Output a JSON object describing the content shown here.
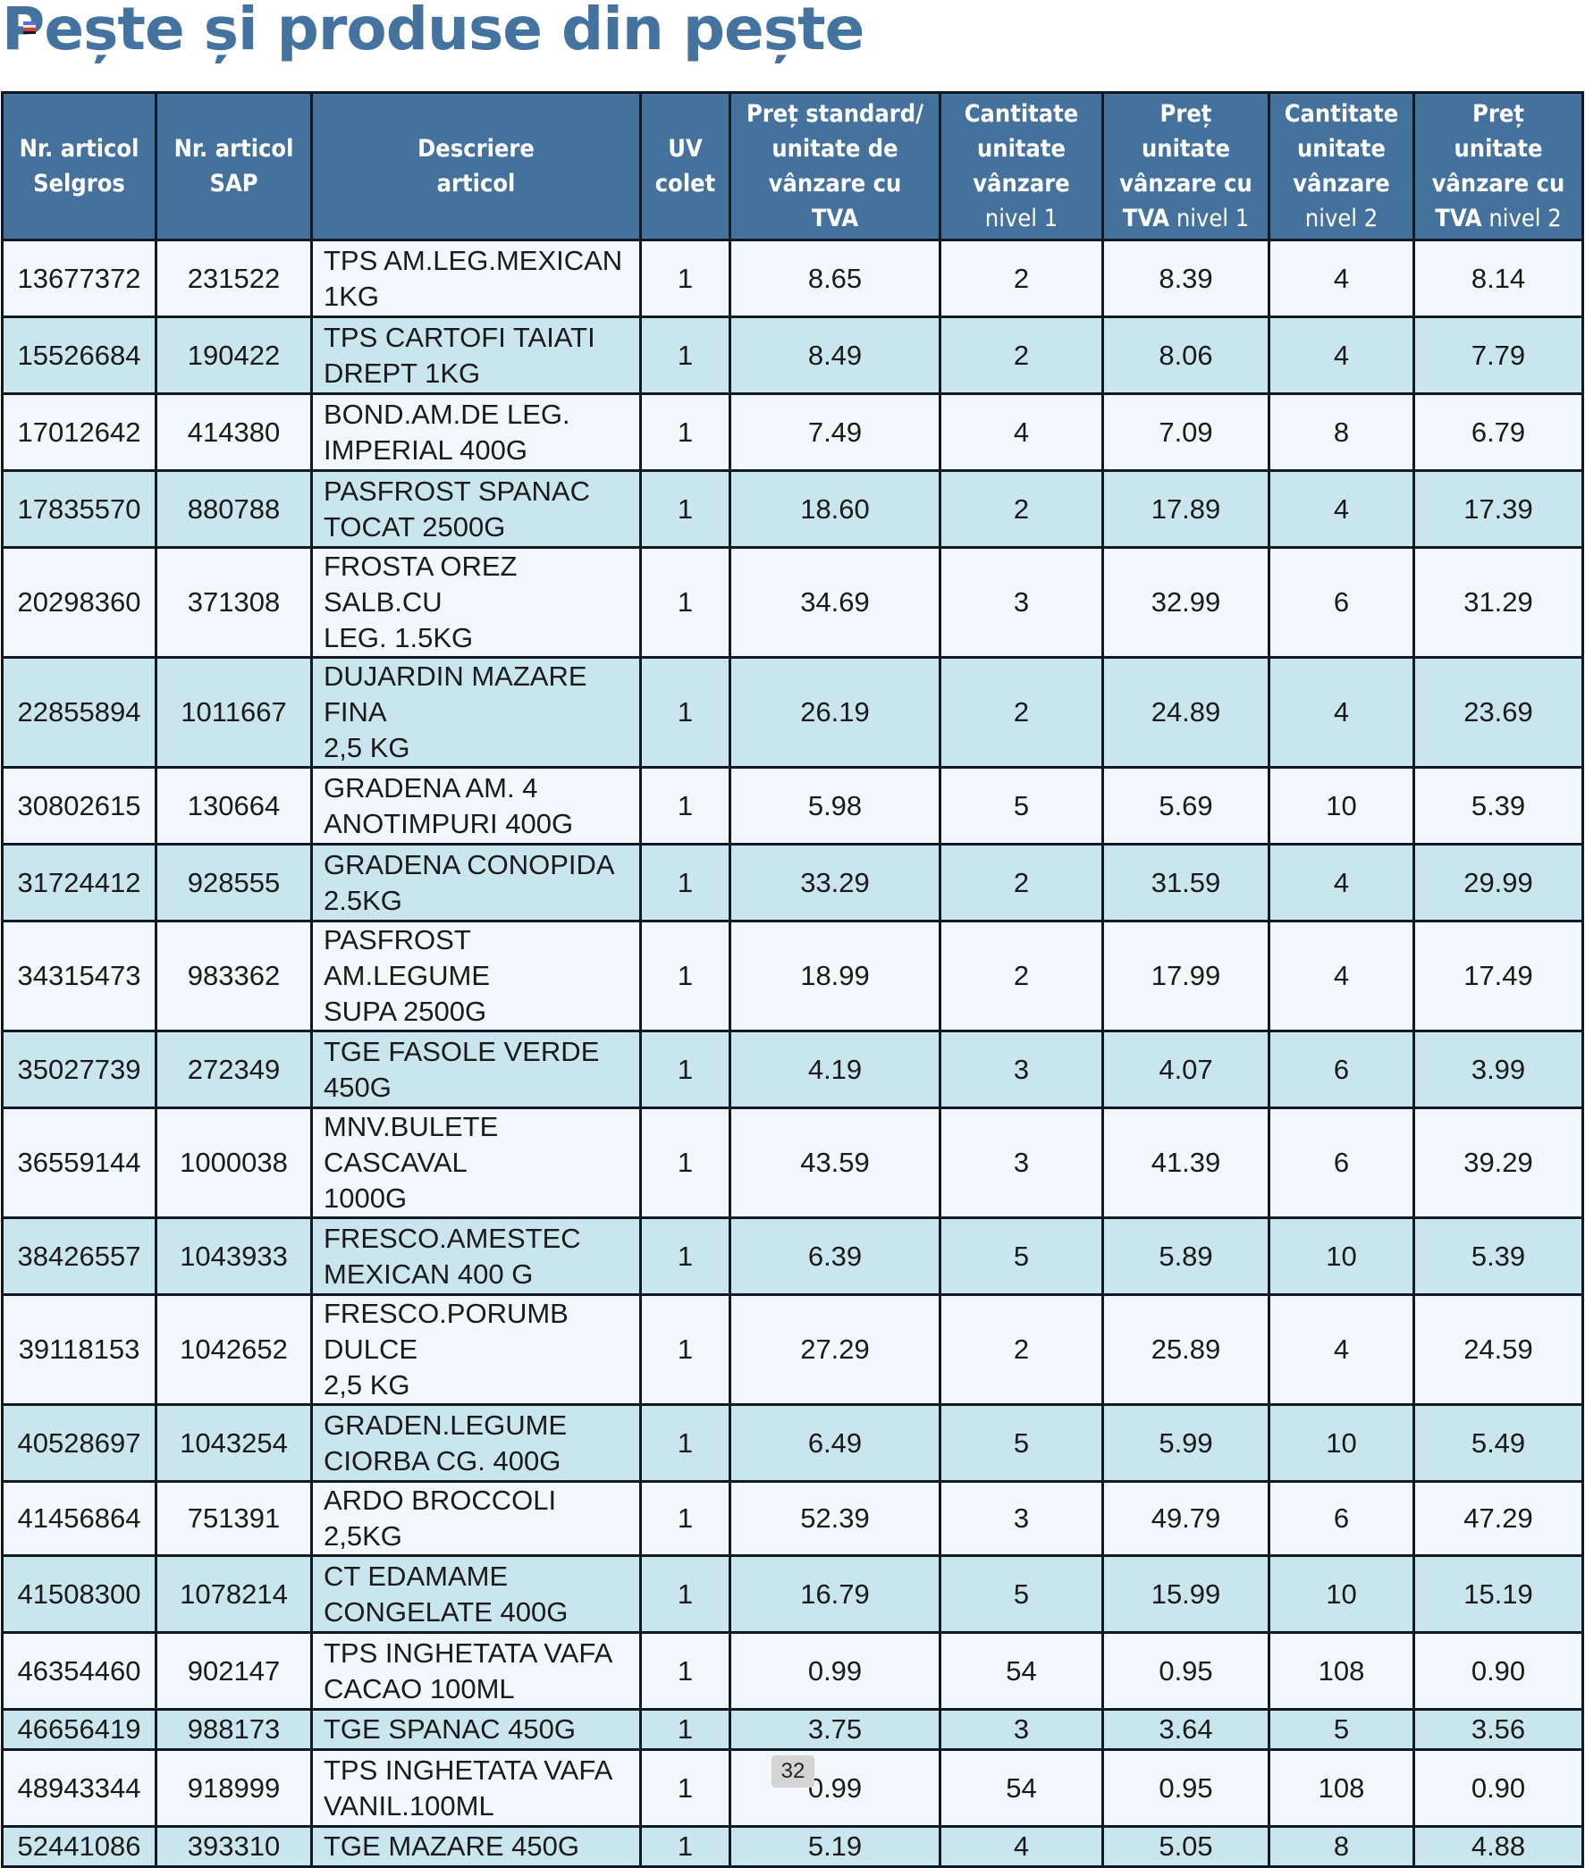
{
  "page": {
    "title": "Pește și produse din pește",
    "page_number": "32",
    "colors": {
      "title": "#4573a0",
      "header_bg": "#44729c",
      "row_light": "#f1f8fb",
      "row_shaded": "#c9e6ee",
      "border": "#111a24"
    }
  },
  "table": {
    "columns": [
      {
        "key": "selgros",
        "line1": "Nr. articol",
        "line2": "Selgros"
      },
      {
        "key": "sap",
        "line1": "Nr. articol",
        "line2": "SAP"
      },
      {
        "key": "description",
        "line1": "Descriere",
        "line2": "articol"
      },
      {
        "key": "uv",
        "line1": "UV",
        "line2": "colet"
      },
      {
        "key": "std_price",
        "line1": "Preț standard/",
        "line2": "unitate de",
        "line3": "vânzare cu",
        "line4": "TVA"
      },
      {
        "key": "qty1",
        "line1": "Cantitate",
        "line2": "unitate",
        "line3": "vânzare",
        "line4": "nivel 1"
      },
      {
        "key": "price1",
        "line1": "Preț",
        "line2": "unitate",
        "line3": "vânzare cu",
        "line4a": "TVA",
        "line4b": " nivel 1"
      },
      {
        "key": "qty2",
        "line1": "Cantitate",
        "line2": "unitate",
        "line3": "vânzare",
        "line4": "nivel 2"
      },
      {
        "key": "price2",
        "line1": "Preț",
        "line2": "unitate",
        "line3": "vânzare cu",
        "line4a": "TVA",
        "line4b": " nivel 2"
      }
    ],
    "rows": [
      {
        "selgros": "13677372",
        "sap": "231522",
        "desc1": "TPS AM.LEG.MEXICAN",
        "desc2": "1KG",
        "uv": "1",
        "std_price": "8.65",
        "qty1": "2",
        "price1": "8.39",
        "qty2": "4",
        "price2": "8.14"
      },
      {
        "selgros": "15526684",
        "sap": "190422",
        "desc1": "TPS CARTOFI TAIATI",
        "desc2": "DREPT 1KG",
        "uv": "1",
        "std_price": "8.49",
        "qty1": "2",
        "price1": "8.06",
        "qty2": "4",
        "price2": "7.79"
      },
      {
        "selgros": "17012642",
        "sap": "414380",
        "desc1": "BOND.AM.DE LEG.",
        "desc2": "IMPERIAL 400G",
        "uv": "1",
        "std_price": "7.49",
        "qty1": "4",
        "price1": "7.09",
        "qty2": "8",
        "price2": "6.79"
      },
      {
        "selgros": "17835570",
        "sap": "880788",
        "desc1": "PASFROST SPANAC",
        "desc2": "TOCAT 2500G",
        "uv": "1",
        "std_price": "18.60",
        "qty1": "2",
        "price1": "17.89",
        "qty2": "4",
        "price2": "17.39"
      },
      {
        "selgros": "20298360",
        "sap": "371308",
        "desc1": "FROSTA OREZ SALB.CU",
        "desc2": "LEG. 1.5KG",
        "uv": "1",
        "std_price": "34.69",
        "qty1": "3",
        "price1": "32.99",
        "qty2": "6",
        "price2": "31.29"
      },
      {
        "selgros": "22855894",
        "sap": "1011667",
        "desc1": "DUJARDIN MAZARE FINA",
        "desc2": "2,5 KG",
        "uv": "1",
        "std_price": "26.19",
        "qty1": "2",
        "price1": "24.89",
        "qty2": "4",
        "price2": "23.69"
      },
      {
        "selgros": "30802615",
        "sap": "130664",
        "desc1": "GRADENA AM. 4",
        "desc2": "ANOTIMPURI 400G",
        "uv": "1",
        "std_price": "5.98",
        "qty1": "5",
        "price1": "5.69",
        "qty2": "10",
        "price2": "5.39"
      },
      {
        "selgros": "31724412",
        "sap": "928555",
        "desc1": "GRADENA CONOPIDA",
        "desc2": "2.5KG",
        "uv": "1",
        "std_price": "33.29",
        "qty1": "2",
        "price1": "31.59",
        "qty2": "4",
        "price2": "29.99"
      },
      {
        "selgros": "34315473",
        "sap": "983362",
        "desc1": "PASFROST AM.LEGUME",
        "desc2": "SUPA 2500G",
        "uv": "1",
        "std_price": "18.99",
        "qty1": "2",
        "price1": "17.99",
        "qty2": "4",
        "price2": "17.49"
      },
      {
        "selgros": "35027739",
        "sap": "272349",
        "desc1": "TGE FASOLE VERDE",
        "desc2": "450G",
        "uv": "1",
        "std_price": "4.19",
        "qty1": "3",
        "price1": "4.07",
        "qty2": "6",
        "price2": "3.99"
      },
      {
        "selgros": "36559144",
        "sap": "1000038",
        "desc1": "MNV.BULETE CASCAVAL",
        "desc2": "1000G",
        "uv": "1",
        "std_price": "43.59",
        "qty1": "3",
        "price1": "41.39",
        "qty2": "6",
        "price2": "39.29"
      },
      {
        "selgros": "38426557",
        "sap": "1043933",
        "desc1": "FRESCO.AMESTEC",
        "desc2": "MEXICAN 400 G",
        "uv": "1",
        "std_price": "6.39",
        "qty1": "5",
        "price1": "5.89",
        "qty2": "10",
        "price2": "5.39"
      },
      {
        "selgros": "39118153",
        "sap": "1042652",
        "desc1": "FRESCO.PORUMB DULCE",
        "desc2": "2,5 KG",
        "uv": "1",
        "std_price": "27.29",
        "qty1": "2",
        "price1": "25.89",
        "qty2": "4",
        "price2": "24.59"
      },
      {
        "selgros": "40528697",
        "sap": "1043254",
        "desc1": "GRADEN.LEGUME",
        "desc2": "CIORBA CG. 400G",
        "uv": "1",
        "std_price": "6.49",
        "qty1": "5",
        "price1": "5.99",
        "qty2": "10",
        "price2": "5.49"
      },
      {
        "selgros": "41456864",
        "sap": "751391",
        "desc1": "ARDO BROCCOLI 2,5KG",
        "desc2": "",
        "uv": "1",
        "std_price": "52.39",
        "qty1": "3",
        "price1": "49.79",
        "qty2": "6",
        "price2": "47.29"
      },
      {
        "selgros": "41508300",
        "sap": "1078214",
        "desc1": "CT EDAMAME",
        "desc2": "CONGELATE 400G",
        "uv": "1",
        "std_price": "16.79",
        "qty1": "5",
        "price1": "15.99",
        "qty2": "10",
        "price2": "15.19"
      },
      {
        "selgros": "46354460",
        "sap": "902147",
        "desc1": "TPS INGHETATA VAFA",
        "desc2": "CACAO 100ML",
        "uv": "1",
        "std_price": "0.99",
        "qty1": "54",
        "price1": "0.95",
        "qty2": "108",
        "price2": "0.90"
      },
      {
        "selgros": "46656419",
        "sap": "988173",
        "desc1": "TGE SPANAC 450G",
        "desc2": "",
        "uv": "1",
        "std_price": "3.75",
        "qty1": "3",
        "price1": "3.64",
        "qty2": "5",
        "price2": "3.56"
      },
      {
        "selgros": "48943344",
        "sap": "918999",
        "desc1": "TPS INGHETATA VAFA",
        "desc2": "VANIL.100ML",
        "uv": "1",
        "std_price": "0.99",
        "qty1": "54",
        "price1": "0.95",
        "qty2": "108",
        "price2": "0.90"
      },
      {
        "selgros": "52441086",
        "sap": "393310",
        "desc1": "TGE MAZARE 450G",
        "desc2": "",
        "uv": "1",
        "std_price": "5.19",
        "qty1": "4",
        "price1": "5.05",
        "qty2": "8",
        "price2": "4.88"
      }
    ]
  }
}
